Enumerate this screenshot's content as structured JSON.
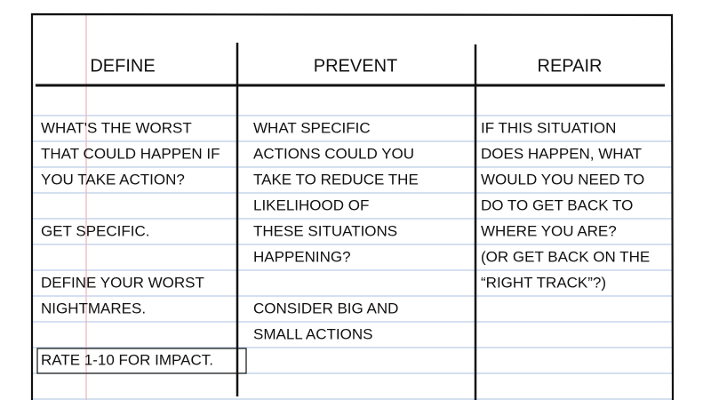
{
  "columns": [
    {
      "header": "DEFINE",
      "paragraphs": [
        [
          "WHAT'S THE WORST",
          "THAT COULD HAPPEN IF",
          "YOU TAKE ACTION?"
        ],
        [
          "GET SPECIFIC."
        ],
        [
          "DEFINE YOUR WORST",
          "NIGHTMARES."
        ],
        [
          "RATE 1-10 FOR IMPACT."
        ]
      ]
    },
    {
      "header": "PREVENT",
      "paragraphs": [
        [
          "WHAT SPECIFIC",
          "ACTIONS COULD YOU",
          "TAKE TO REDUCE THE",
          "LIKELIHOOD OF",
          "THESE SITUATIONS",
          "HAPPENING?"
        ],
        [
          "CONSIDER BIG AND",
          "SMALL ACTIONS"
        ]
      ]
    },
    {
      "header": "REPAIR",
      "paragraphs": [
        [
          "IF THIS SITUATION",
          "DOES HAPPEN, WHAT",
          "WOULD YOU NEED TO",
          "DO TO GET BACK TO",
          "WHERE YOU ARE?",
          "(OR GET BACK ON THE",
          "“RIGHT TRACK”?)"
        ]
      ]
    }
  ]
}
